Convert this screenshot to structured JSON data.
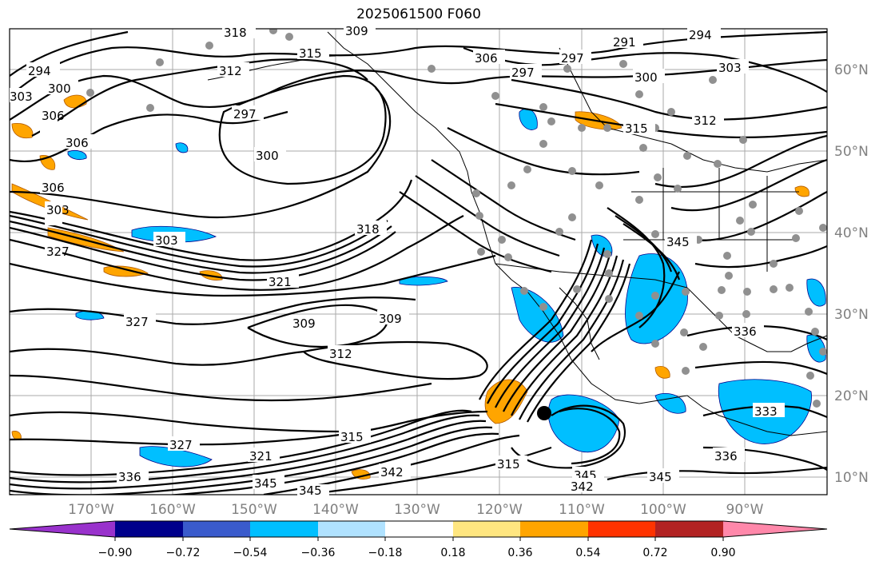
{
  "title": "2025061500 F060",
  "lon_labels": [
    "170°W",
    "160°W",
    "150°W",
    "140°W",
    "130°W",
    "120°W",
    "110°W",
    "100°W",
    "90°W"
  ],
  "lat_labels": [
    "60°N",
    "50°N",
    "40°N",
    "30°N",
    "20°N",
    "10°N"
  ],
  "colorbar": {
    "ticks": [
      "−0.90",
      "−0.72",
      "−0.54",
      "−0.36",
      "−0.18",
      "0.18",
      "0.36",
      "0.54",
      "0.72",
      "0.90"
    ],
    "colors": [
      "#9932cc",
      "#00008b",
      "#3a5bcc",
      "#00bfff",
      "#b0e2ff",
      "#ffffff",
      "#ffe680",
      "#ffa500",
      "#ff3300",
      "#b22222",
      "#ff88aa"
    ]
  },
  "contour_labels": [
    "318",
    "309",
    "291",
    "294",
    "297",
    "294",
    "315",
    "306",
    "297",
    "300",
    "303",
    "312",
    "300",
    "306",
    "315",
    "312",
    "297",
    "300",
    "306",
    "306",
    "303",
    "318",
    "327",
    "303",
    "321",
    "309",
    "309",
    "327",
    "312",
    "315",
    "327",
    "321",
    "336",
    "345",
    "345",
    "342",
    "345",
    "342",
    "345",
    "345",
    "336",
    "333",
    "336",
    "315",
    "303"
  ]
}
